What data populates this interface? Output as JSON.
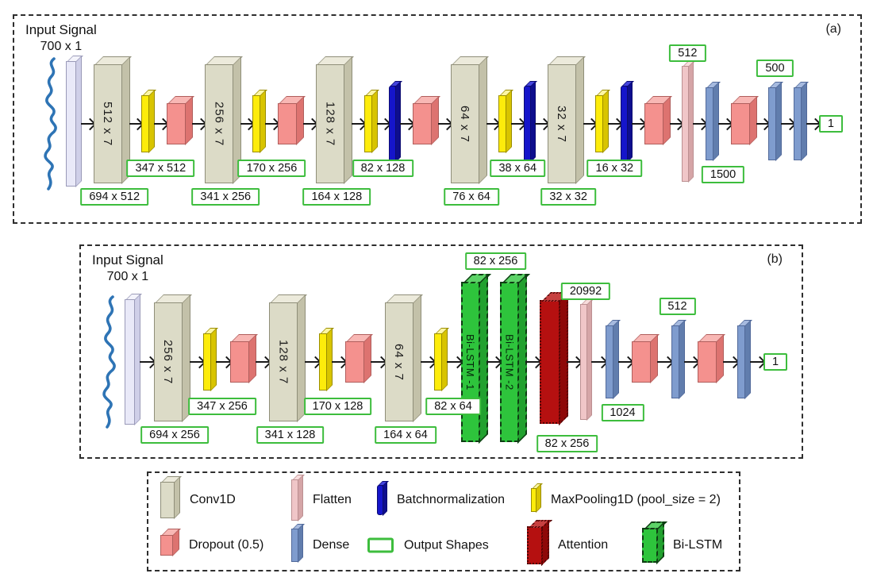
{
  "palette": {
    "conv": "#dcdbc7",
    "conv_top": "#eceadb",
    "conv_side": "#c3c1a9",
    "maxpool": "#fdec0b",
    "maxpool_top": "#fdf6a3",
    "maxpool_side": "#d8c400",
    "dropout": "#f4918e",
    "dropout_top": "#f8b7b4",
    "dropout_side": "#dd7370",
    "batchnorm": "#1515cb",
    "batchnorm_top": "#4444dd",
    "batchnorm_side": "#0e0e8e",
    "flatten": "#f0c6c8",
    "flatten_top": "#f8dddd",
    "flatten_side": "#d5a5a7",
    "dense": "#7f9cce",
    "dense_top": "#a6badf",
    "dense_side": "#617dad",
    "attention": "#b51010",
    "attention_top": "#c74040",
    "attention_side": "#8e0808",
    "bilstm": "#2ec43c",
    "bilstm_top": "#5cd367",
    "bilstm_side": "#22a12f",
    "input": "#e9e9f8",
    "input_top": "#f4f4fb",
    "input_side": "#cfcfe8",
    "output_border": "#3dbd3d",
    "signal": "#2e74b5",
    "arrow": "#1a1a1a"
  },
  "panels": [
    {
      "tag": "(a)",
      "input_title": "Input Signal",
      "input_shape": "700 x 1",
      "nodes": [
        {
          "kind": "signal"
        },
        {
          "kind": "input"
        },
        {
          "kind": "conv",
          "text": "512 x 7",
          "out": {
            "text": "694 x 512",
            "pos": "below"
          }
        },
        {
          "kind": "maxpool",
          "out": {
            "text": "347 x 512",
            "pos": "mid"
          }
        },
        {
          "kind": "dropout"
        },
        {
          "kind": "conv",
          "text": "256 x 7",
          "out": {
            "text": "341 x 256",
            "pos": "below"
          }
        },
        {
          "kind": "maxpool",
          "out": {
            "text": "170 x 256",
            "pos": "mid"
          }
        },
        {
          "kind": "dropout"
        },
        {
          "kind": "conv",
          "text": "128 x 7",
          "out": {
            "text": "164 x 128",
            "pos": "below"
          }
        },
        {
          "kind": "maxpool",
          "out": {
            "text": "82 x 128",
            "pos": "mid"
          }
        },
        {
          "kind": "batchnorm"
        },
        {
          "kind": "dropout"
        },
        {
          "kind": "conv",
          "text": "64 x 7",
          "out": {
            "text": "76 x 64",
            "pos": "below"
          }
        },
        {
          "kind": "maxpool",
          "out": {
            "text": "38 x 64",
            "pos": "mid"
          }
        },
        {
          "kind": "batchnorm"
        },
        {
          "kind": "conv",
          "text": "32 x 7",
          "out": {
            "text": "32 x 32",
            "pos": "below"
          }
        },
        {
          "kind": "maxpool",
          "out": {
            "text": "16 x 32",
            "pos": "mid"
          }
        },
        {
          "kind": "batchnorm"
        },
        {
          "kind": "dropout"
        },
        {
          "kind": "flatten",
          "out": {
            "text": "512",
            "pos": "above2"
          }
        },
        {
          "kind": "dense",
          "out": {
            "text": "1500",
            "pos": "mid2"
          }
        },
        {
          "kind": "dropout"
        },
        {
          "kind": "dense",
          "out": {
            "text": "500",
            "pos": "above"
          }
        },
        {
          "kind": "dense"
        },
        {
          "kind": "outbox",
          "text": "1"
        }
      ]
    },
    {
      "tag": "(b)",
      "input_title": "Input Signal",
      "input_shape": "700 x 1",
      "nodes": [
        {
          "kind": "signal"
        },
        {
          "kind": "input"
        },
        {
          "kind": "conv",
          "text": "256 x 7",
          "out": {
            "text": "694 x 256",
            "pos": "below"
          }
        },
        {
          "kind": "maxpool",
          "out": {
            "text": "347 x 256",
            "pos": "mid"
          }
        },
        {
          "kind": "dropout"
        },
        {
          "kind": "conv",
          "text": "128 x 7",
          "out": {
            "text": "341 x 128",
            "pos": "below"
          }
        },
        {
          "kind": "maxpool",
          "out": {
            "text": "170 x 128",
            "pos": "mid"
          }
        },
        {
          "kind": "dropout"
        },
        {
          "kind": "conv",
          "text": "64 x 7",
          "out": {
            "text": "164 x 64",
            "pos": "below"
          }
        },
        {
          "kind": "maxpool",
          "out": {
            "text": "82 x 64",
            "pos": "mid"
          }
        },
        {
          "kind": "bilstm",
          "text": "Bi-LSTM -1",
          "out": {
            "text": "82 x 256",
            "pos": "abovehi"
          }
        },
        {
          "kind": "bilstm",
          "text": "Bi-LSTM -2"
        },
        {
          "kind": "attention",
          "out": {
            "text": "82 x 256",
            "pos": "belowlo"
          }
        },
        {
          "kind": "flatten",
          "out": {
            "text": "20992",
            "pos": "above2"
          }
        },
        {
          "kind": "dense",
          "out": {
            "text": "1024",
            "pos": "mid2"
          }
        },
        {
          "kind": "dropout"
        },
        {
          "kind": "dense",
          "out": {
            "text": "512",
            "pos": "above"
          }
        },
        {
          "kind": "dropout"
        },
        {
          "kind": "dense"
        },
        {
          "kind": "outbox",
          "text": "1"
        }
      ]
    }
  ],
  "legend": {
    "items": [
      {
        "icon": "conv",
        "label": "Conv1D"
      },
      {
        "icon": "flatten",
        "label": "Flatten"
      },
      {
        "icon": "batchnorm",
        "label": "Batchnormalization"
      },
      {
        "icon": "maxpool",
        "label": "MaxPooling1D (pool_size = 2)"
      },
      {
        "icon": "dropout",
        "label": "Dropout (0.5)"
      },
      {
        "icon": "dense",
        "label": "Dense"
      },
      {
        "icon": "outbox",
        "label": "Output Shapes"
      },
      {
        "icon": "attention",
        "label": "Attention"
      },
      {
        "icon": "bilstm",
        "label": "Bi-LSTM"
      }
    ]
  }
}
